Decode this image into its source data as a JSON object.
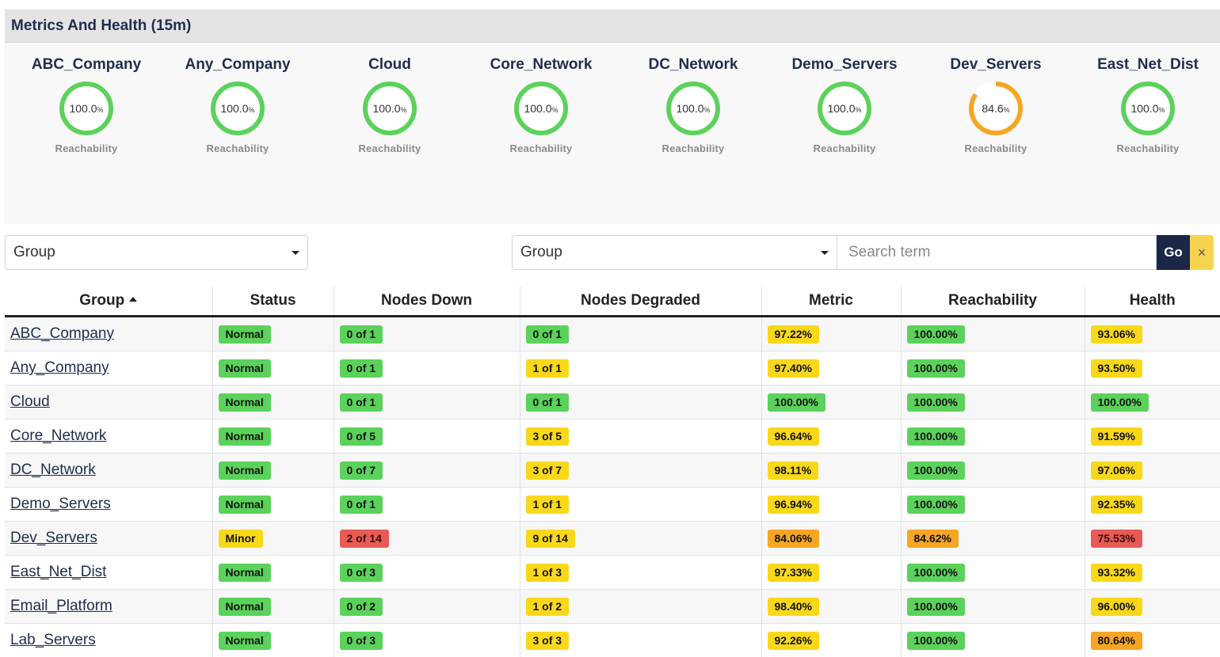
{
  "panel": {
    "title": "Metrics And Health (15m)"
  },
  "gauges": [
    {
      "name": "ABC_Company",
      "value": "100.0",
      "unit": "%",
      "label": "Reachability",
      "percent": 100.0,
      "color": "#5bd25b"
    },
    {
      "name": "Any_Company",
      "value": "100.0",
      "unit": "%",
      "label": "Reachability",
      "percent": 100.0,
      "color": "#5bd25b"
    },
    {
      "name": "Cloud",
      "value": "100.0",
      "unit": "%",
      "label": "Reachability",
      "percent": 100.0,
      "color": "#5bd25b"
    },
    {
      "name": "Core_Network",
      "value": "100.0",
      "unit": "%",
      "label": "Reachability",
      "percent": 100.0,
      "color": "#5bd25b"
    },
    {
      "name": "DC_Network",
      "value": "100.0",
      "unit": "%",
      "label": "Reachability",
      "percent": 100.0,
      "color": "#5bd25b"
    },
    {
      "name": "Demo_Servers",
      "value": "100.0",
      "unit": "%",
      "label": "Reachability",
      "percent": 100.0,
      "color": "#5bd25b"
    },
    {
      "name": "Dev_Servers",
      "value": "84.6",
      "unit": "%",
      "label": "Reachability",
      "percent": 84.6,
      "color": "#f6a623"
    },
    {
      "name": "East_Net_Dist",
      "value": "100.0",
      "unit": "%",
      "label": "Reachability",
      "percent": 100.0,
      "color": "#5bd25b"
    }
  ],
  "filters": {
    "group_select_left": "Group",
    "group_select_right": "Group",
    "search_placeholder": "Search term",
    "go_label": "Go",
    "clear_label": "×"
  },
  "table": {
    "headers": [
      "Group",
      "Status",
      "Nodes Down",
      "Nodes Degraded",
      "Metric",
      "Reachability",
      "Health"
    ],
    "rows": [
      {
        "group": "ABC_Company",
        "status": "Normal",
        "status_color": "green",
        "down": "0 of 1",
        "down_color": "green",
        "degraded": "0 of 1",
        "degraded_color": "green",
        "metric": "97.22%",
        "metric_color": "yellow",
        "reach": "100.00%",
        "reach_color": "green",
        "health": "93.06%",
        "health_color": "yellow"
      },
      {
        "group": "Any_Company",
        "status": "Normal",
        "status_color": "green",
        "down": "0 of 1",
        "down_color": "green",
        "degraded": "1 of 1",
        "degraded_color": "yellow",
        "metric": "97.40%",
        "metric_color": "yellow",
        "reach": "100.00%",
        "reach_color": "green",
        "health": "93.50%",
        "health_color": "yellow"
      },
      {
        "group": "Cloud",
        "status": "Normal",
        "status_color": "green",
        "down": "0 of 1",
        "down_color": "green",
        "degraded": "0 of 1",
        "degraded_color": "green",
        "metric": "100.00%",
        "metric_color": "green",
        "reach": "100.00%",
        "reach_color": "green",
        "health": "100.00%",
        "health_color": "green"
      },
      {
        "group": "Core_Network",
        "status": "Normal",
        "status_color": "green",
        "down": "0 of 5",
        "down_color": "green",
        "degraded": "3 of 5",
        "degraded_color": "yellow",
        "metric": "96.64%",
        "metric_color": "yellow",
        "reach": "100.00%",
        "reach_color": "green",
        "health": "91.59%",
        "health_color": "yellow"
      },
      {
        "group": "DC_Network",
        "status": "Normal",
        "status_color": "green",
        "down": "0 of 7",
        "down_color": "green",
        "degraded": "3 of 7",
        "degraded_color": "yellow",
        "metric": "98.11%",
        "metric_color": "yellow",
        "reach": "100.00%",
        "reach_color": "green",
        "health": "97.06%",
        "health_color": "yellow"
      },
      {
        "group": "Demo_Servers",
        "status": "Normal",
        "status_color": "green",
        "down": "0 of 1",
        "down_color": "green",
        "degraded": "1 of 1",
        "degraded_color": "yellow",
        "metric": "96.94%",
        "metric_color": "yellow",
        "reach": "100.00%",
        "reach_color": "green",
        "health": "92.35%",
        "health_color": "yellow"
      },
      {
        "group": "Dev_Servers",
        "status": "Minor",
        "status_color": "yellow",
        "down": "2 of 14",
        "down_color": "red",
        "degraded": "9 of 14",
        "degraded_color": "yellow",
        "metric": "84.06%",
        "metric_color": "orange",
        "reach": "84.62%",
        "reach_color": "orange",
        "health": "75.53%",
        "health_color": "red"
      },
      {
        "group": "East_Net_Dist",
        "status": "Normal",
        "status_color": "green",
        "down": "0 of 3",
        "down_color": "green",
        "degraded": "1 of 3",
        "degraded_color": "yellow",
        "metric": "97.33%",
        "metric_color": "yellow",
        "reach": "100.00%",
        "reach_color": "green",
        "health": "93.32%",
        "health_color": "yellow"
      },
      {
        "group": "Email_Platform",
        "status": "Normal",
        "status_color": "green",
        "down": "0 of 2",
        "down_color": "green",
        "degraded": "1 of 2",
        "degraded_color": "yellow",
        "metric": "98.40%",
        "metric_color": "yellow",
        "reach": "100.00%",
        "reach_color": "green",
        "health": "96.00%",
        "health_color": "yellow"
      },
      {
        "group": "Lab_Servers",
        "status": "Normal",
        "status_color": "green",
        "down": "0 of 3",
        "down_color": "green",
        "degraded": "3 of 3",
        "degraded_color": "yellow",
        "metric": "92.26%",
        "metric_color": "yellow",
        "reach": "100.00%",
        "reach_color": "green",
        "health": "80.64%",
        "health_color": "orange"
      }
    ]
  }
}
